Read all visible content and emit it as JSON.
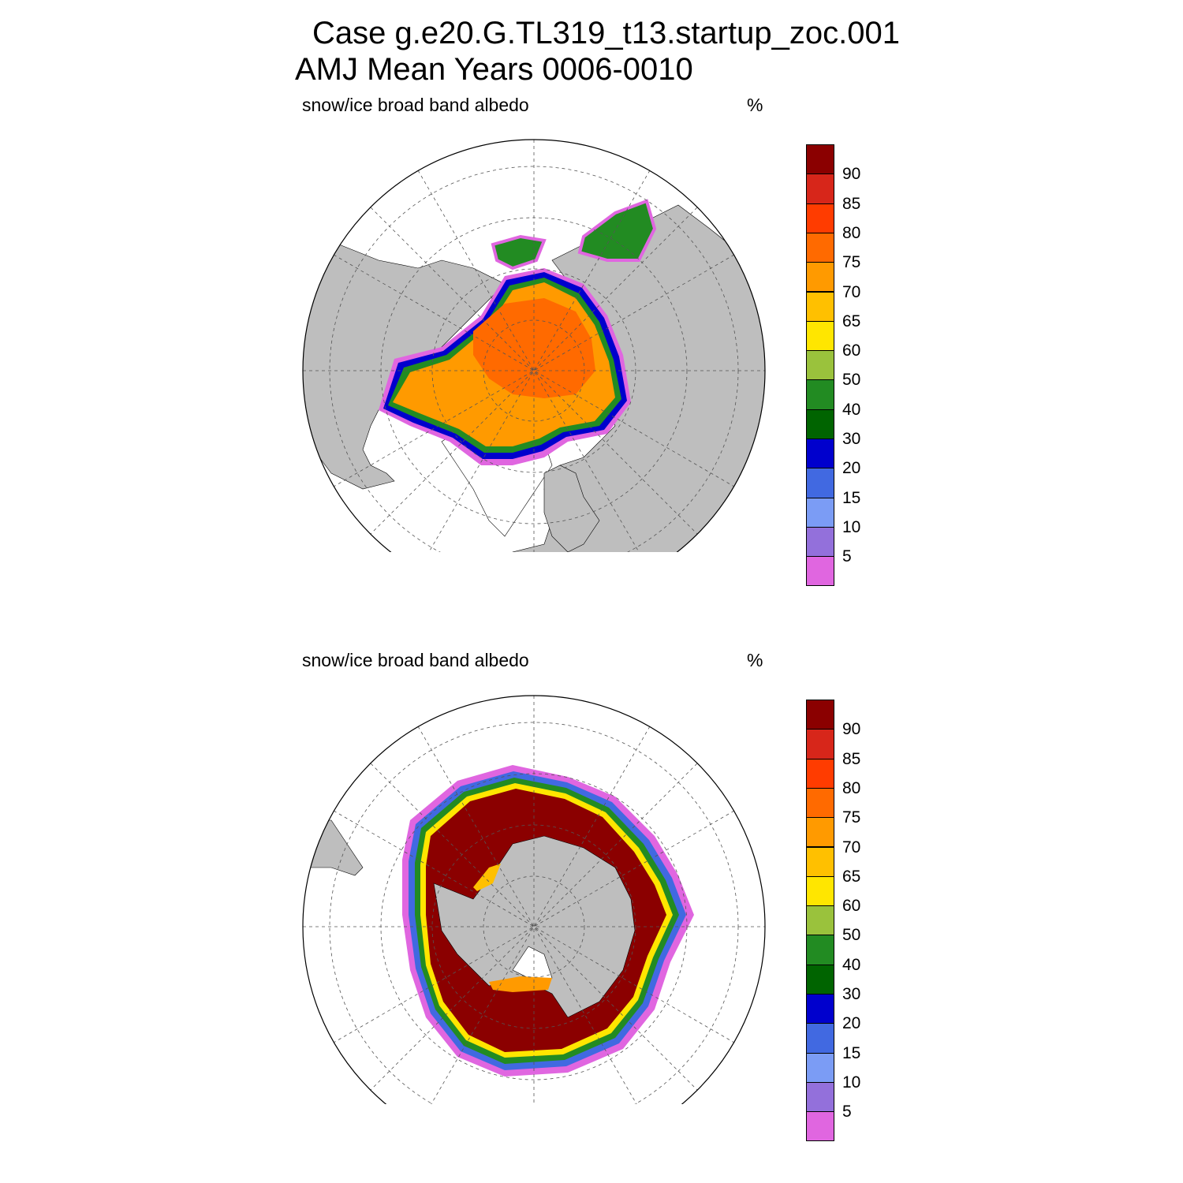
{
  "title": {
    "line1": "Case g.e20.G.TL319_t13.startup_zoc.001",
    "line2": "AMJ Mean   Years 0006-0010"
  },
  "panels": [
    {
      "id": "north",
      "field_label": "snow/ice broad band albedo",
      "units": "%"
    },
    {
      "id": "south",
      "field_label": "snow/ice broad band albedo",
      "units": "%"
    }
  ],
  "colorbar": {
    "levels": [
      "90",
      "85",
      "80",
      "75",
      "70",
      "65",
      "60",
      "50",
      "40",
      "30",
      "20",
      "15",
      "10",
      "5"
    ],
    "colors": [
      "#8b0000",
      "#d7261a",
      "#ff3c00",
      "#ff6a00",
      "#ff9a00",
      "#ffc000",
      "#ffe600",
      "#9ac23c",
      "#228b22",
      "#006400",
      "#0000cd",
      "#4169e1",
      "#7b9cf5",
      "#9370db",
      "#e066e0"
    ]
  },
  "colors": {
    "land": "#bebebe",
    "ocean": "#ffffff",
    "grid": "#555555"
  }
}
